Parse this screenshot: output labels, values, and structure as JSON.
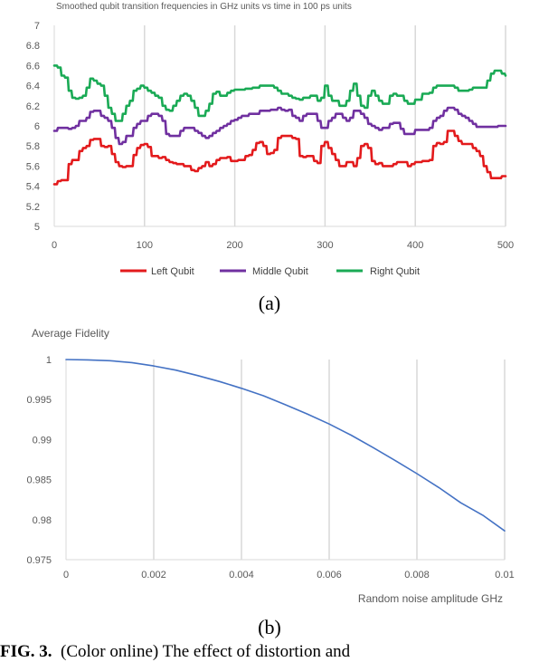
{
  "chart_data": [
    {
      "type": "line",
      "title": "Smoothed qubit transition frequencies in GHz units vs time in 100 ps units",
      "xlim": [
        0,
        500
      ],
      "ylim": [
        5,
        7
      ],
      "xticks": [
        0,
        100,
        200,
        300,
        400,
        500
      ],
      "yticks": [
        5,
        5.2,
        5.4,
        5.6,
        5.8,
        6,
        6.2,
        6.4,
        6.6,
        6.8,
        7
      ],
      "ytick_labels": [
        "5",
        "5.2",
        "5.4",
        "5.6",
        "5.8",
        "6",
        "6.2",
        "6.4",
        "6.6",
        "6.8",
        "7"
      ],
      "grid": "vertical",
      "legend_position": "bottom",
      "x": [
        0,
        4,
        8,
        12,
        16,
        20,
        24,
        28,
        32,
        36,
        40,
        44,
        48,
        52,
        56,
        60,
        64,
        68,
        72,
        76,
        80,
        84,
        88,
        92,
        96,
        100,
        104,
        108,
        112,
        116,
        120,
        124,
        128,
        132,
        136,
        140,
        144,
        148,
        152,
        156,
        160,
        164,
        168,
        172,
        176,
        180,
        184,
        188,
        192,
        196,
        200,
        204,
        208,
        212,
        216,
        220,
        224,
        228,
        232,
        236,
        240,
        244,
        248,
        252,
        256,
        260,
        264,
        268,
        272,
        276,
        280,
        284,
        288,
        292,
        296,
        300,
        304,
        308,
        312,
        316,
        320,
        324,
        328,
        332,
        336,
        340,
        344,
        348,
        352,
        356,
        360,
        364,
        368,
        372,
        376,
        380,
        384,
        388,
        392,
        396,
        400,
        404,
        408,
        412,
        416,
        420,
        424,
        428,
        432,
        436,
        440,
        444,
        448,
        452,
        456,
        460,
        464,
        468,
        472,
        476,
        480,
        484,
        488,
        492,
        496,
        500
      ],
      "series": [
        {
          "name": "Left Qubit",
          "color": "#e31a1c",
          "values": [
            5.42,
            5.45,
            5.46,
            5.46,
            5.62,
            5.66,
            5.66,
            5.75,
            5.78,
            5.8,
            5.86,
            5.87,
            5.87,
            5.8,
            5.79,
            5.8,
            5.72,
            5.64,
            5.6,
            5.59,
            5.6,
            5.6,
            5.71,
            5.78,
            5.81,
            5.82,
            5.79,
            5.7,
            5.7,
            5.68,
            5.69,
            5.66,
            5.64,
            5.63,
            5.62,
            5.62,
            5.6,
            5.6,
            5.56,
            5.55,
            5.58,
            5.6,
            5.64,
            5.6,
            5.62,
            5.66,
            5.68,
            5.68,
            5.69,
            5.65,
            5.65,
            5.66,
            5.66,
            5.7,
            5.71,
            5.76,
            5.83,
            5.84,
            5.8,
            5.72,
            5.73,
            5.76,
            5.88,
            5.9,
            5.9,
            5.9,
            5.88,
            5.87,
            5.7,
            5.69,
            5.7,
            5.7,
            5.65,
            5.63,
            5.8,
            5.84,
            5.78,
            5.72,
            5.66,
            5.6,
            5.6,
            5.64,
            5.64,
            5.6,
            5.68,
            5.8,
            5.82,
            5.78,
            5.65,
            5.62,
            5.63,
            5.6,
            5.6,
            5.6,
            5.62,
            5.64,
            5.64,
            5.64,
            5.6,
            5.62,
            5.64,
            5.64,
            5.65,
            5.65,
            5.66,
            5.8,
            5.83,
            5.82,
            5.84,
            5.95,
            5.95,
            5.9,
            5.85,
            5.82,
            5.82,
            5.82,
            5.78,
            5.75,
            5.7,
            5.6,
            5.54,
            5.48,
            5.48,
            5.48,
            5.5,
            5.5
          ]
        },
        {
          "name": "Middle Qubit",
          "color": "#7030a0",
          "values": [
            5.95,
            5.98,
            5.98,
            5.98,
            5.97,
            5.98,
            6.0,
            6.05,
            6.05,
            6.08,
            6.14,
            6.15,
            6.15,
            6.1,
            6.08,
            6.05,
            5.98,
            5.88,
            5.82,
            5.84,
            5.9,
            5.9,
            5.98,
            6.02,
            6.05,
            6.05,
            6.1,
            6.12,
            6.12,
            6.1,
            6.05,
            5.92,
            5.9,
            5.9,
            5.9,
            5.95,
            5.98,
            5.98,
            5.98,
            5.95,
            5.93,
            5.9,
            5.88,
            5.9,
            5.93,
            5.95,
            5.98,
            6.0,
            6.02,
            6.05,
            6.06,
            6.08,
            6.1,
            6.1,
            6.12,
            6.12,
            6.12,
            6.15,
            6.15,
            6.15,
            6.16,
            6.16,
            6.18,
            6.16,
            6.15,
            6.16,
            6.1,
            6.08,
            6.05,
            6.1,
            6.12,
            6.12,
            6.12,
            6.05,
            5.98,
            5.98,
            6.05,
            6.08,
            6.12,
            6.12,
            6.08,
            6.05,
            6.08,
            6.15,
            6.15,
            6.12,
            6.08,
            6.02,
            6.0,
            5.98,
            5.96,
            5.98,
            5.98,
            6.02,
            6.03,
            6.03,
            5.97,
            5.92,
            5.92,
            5.92,
            5.96,
            5.96,
            5.96,
            5.96,
            5.98,
            6.05,
            6.08,
            6.1,
            6.15,
            6.18,
            6.18,
            6.16,
            6.12,
            6.1,
            6.08,
            6.05,
            6.02,
            5.99,
            5.99,
            5.99,
            5.99,
            5.99,
            5.99,
            6.0,
            6.0,
            6.0
          ]
        },
        {
          "name": "Right Qubit",
          "color": "#1aaa55",
          "values": [
            6.6,
            6.58,
            6.5,
            6.48,
            6.35,
            6.28,
            6.27,
            6.28,
            6.3,
            6.38,
            6.47,
            6.45,
            6.42,
            6.4,
            6.3,
            6.18,
            6.12,
            6.05,
            6.05,
            6.12,
            6.2,
            6.25,
            6.35,
            6.37,
            6.4,
            6.38,
            6.35,
            6.33,
            6.3,
            6.28,
            6.2,
            6.16,
            6.15,
            6.2,
            6.25,
            6.3,
            6.32,
            6.3,
            6.25,
            6.18,
            6.1,
            6.1,
            6.15,
            6.22,
            6.32,
            6.34,
            6.3,
            6.3,
            6.33,
            6.35,
            6.36,
            6.36,
            6.36,
            6.37,
            6.37,
            6.38,
            6.38,
            6.4,
            6.4,
            6.4,
            6.4,
            6.38,
            6.35,
            6.32,
            6.32,
            6.3,
            6.28,
            6.27,
            6.26,
            6.28,
            6.28,
            6.3,
            6.3,
            6.25,
            6.28,
            6.4,
            6.3,
            6.25,
            6.25,
            6.2,
            6.2,
            6.25,
            6.35,
            6.42,
            6.3,
            6.2,
            6.18,
            6.3,
            6.35,
            6.3,
            6.25,
            6.22,
            6.22,
            6.3,
            6.32,
            6.3,
            6.3,
            6.25,
            6.22,
            6.22,
            6.26,
            6.26,
            6.32,
            6.32,
            6.33,
            6.38,
            6.4,
            6.4,
            6.4,
            6.4,
            6.4,
            6.38,
            6.35,
            6.35,
            6.35,
            6.36,
            6.38,
            6.38,
            6.38,
            6.38,
            6.45,
            6.52,
            6.55,
            6.55,
            6.52,
            6.5
          ]
        }
      ]
    },
    {
      "type": "line",
      "title": "Average Fidelity",
      "xlabel": "Random noise amplitude GHz",
      "xlim": [
        0,
        0.01
      ],
      "ylim": [
        0.975,
        1
      ],
      "xticks": [
        0,
        0.002,
        0.004,
        0.006,
        0.008,
        0.01
      ],
      "xtick_labels": [
        "0",
        "0.002",
        "0.004",
        "0.006",
        "0.008",
        "0.01"
      ],
      "yticks": [
        0.975,
        0.98,
        0.985,
        0.99,
        0.995,
        1
      ],
      "ytick_labels": [
        "0.975",
        "0.98",
        "0.985",
        "0.99",
        "0.995",
        "1"
      ],
      "grid": "vertical",
      "series": [
        {
          "color": "#4472c4",
          "x": [
            0,
            0.0005,
            0.001,
            0.0015,
            0.002,
            0.0025,
            0.003,
            0.0035,
            0.004,
            0.0045,
            0.005,
            0.0055,
            0.006,
            0.0065,
            0.007,
            0.0075,
            0.008,
            0.0085,
            0.009,
            0.0095,
            0.01
          ],
          "values": [
            1.0,
            0.99995,
            0.99985,
            0.99962,
            0.9992,
            0.99868,
            0.998,
            0.99725,
            0.9964,
            0.99548,
            0.99435,
            0.9932,
            0.99195,
            0.99055,
            0.989,
            0.9874,
            0.98575,
            0.984,
            0.9821,
            0.98055,
            0.9786
          ]
        }
      ]
    }
  ],
  "panel_labels": [
    "(a)",
    "(b)"
  ],
  "caption": {
    "label": "FIG. 3.",
    "text": "(Color online) The effect of distortion and"
  }
}
